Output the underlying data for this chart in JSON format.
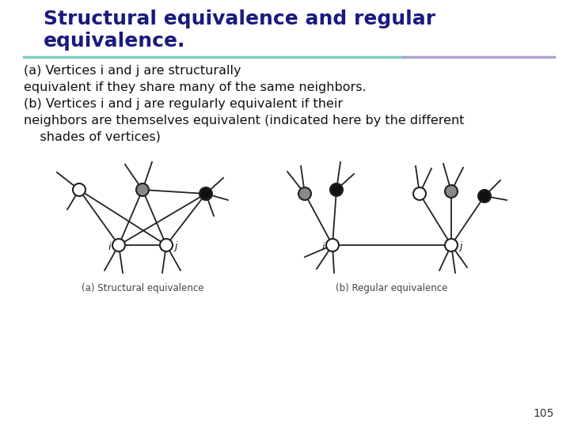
{
  "title_line1": "Structural equivalence and regular",
  "title_line2": "equivalence.",
  "title_color": "#1a1a7e",
  "title_fontsize": 18,
  "body_text": "(a) Vertices i and j are structurally\nequivalent if they share many of the same neighbors.\n(b) Vertices i and j are regularly equivalent if their\nneighbors are themselves equivalent (indicated here by the different\n    shades of vertices)",
  "body_fontsize": 11.5,
  "separator_color": "#7ecec4",
  "separator_color2": "#b0a0d0",
  "caption_a": "(a) Structural equivalence",
  "caption_b": "(b) Regular equivalence",
  "caption_fontsize": 8.5,
  "page_number": "105",
  "background_color": "#ffffff"
}
